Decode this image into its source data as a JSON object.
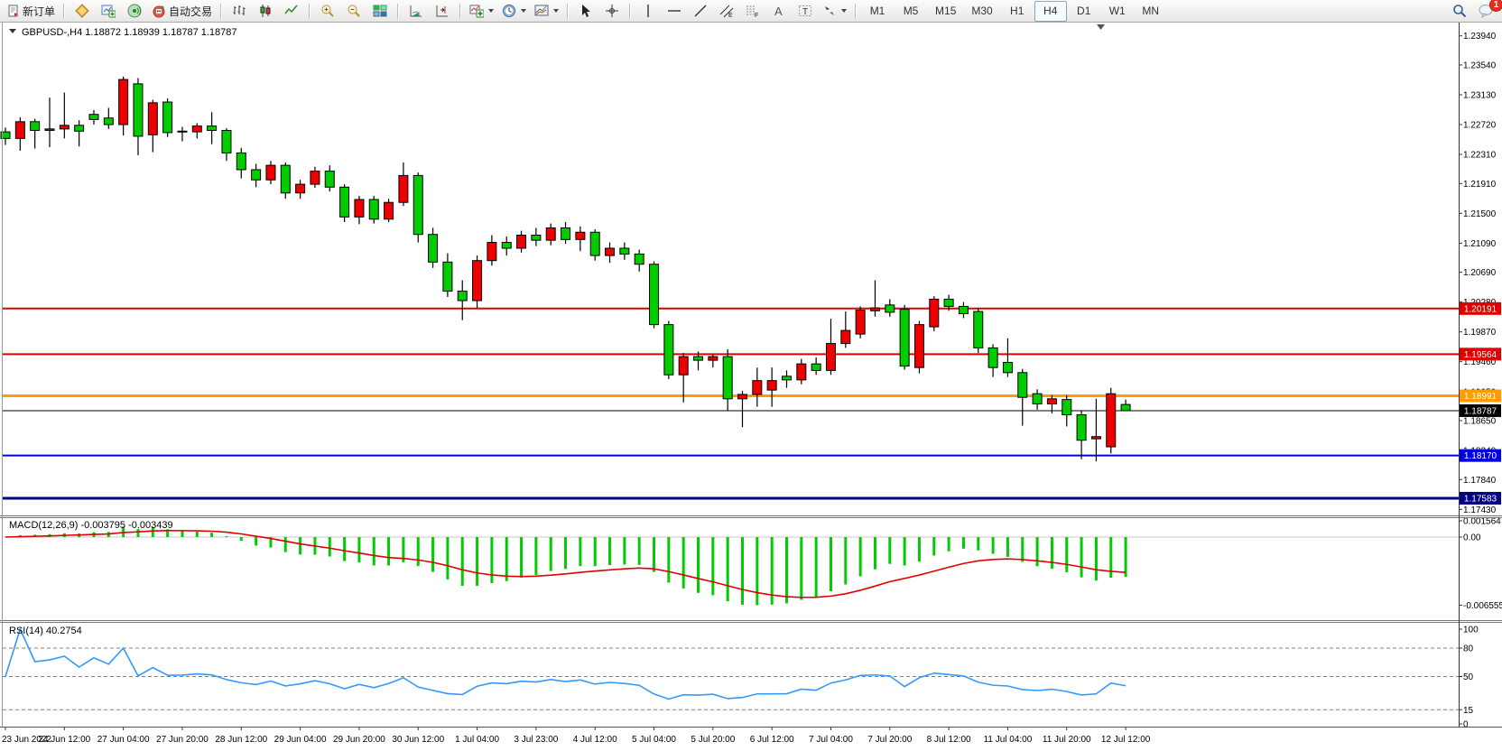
{
  "toolbar": {
    "new_order_label": "新订单",
    "autotrading_label": "自动交易",
    "timeframes": [
      "M1",
      "M5",
      "M15",
      "M30",
      "H1",
      "H4",
      "D1",
      "W1",
      "MN"
    ],
    "active_timeframe": "H4",
    "notification_count": "1"
  },
  "chart": {
    "symbol_title": "GBPUSD-,H4",
    "quote_line": "1.18872 1.18939 1.18787 1.18787",
    "price_axis_ticks": [
      "1.23940",
      "1.23540",
      "1.23130",
      "1.22720",
      "1.22310",
      "1.21910",
      "1.21500",
      "1.21090",
      "1.20690",
      "1.20280",
      "1.19870",
      "1.19460",
      "1.19050",
      "1.18650",
      "1.18240",
      "1.17840",
      "1.17430"
    ],
    "levels": [
      {
        "price": 1.20191,
        "text": "1.20191",
        "color": "#dd0000",
        "w": 2
      },
      {
        "price": 1.19564,
        "text": "1.19564",
        "color": "#dd0000",
        "w": 2
      },
      {
        "price": 1.18991,
        "text": "1.18991",
        "color": "#ff9c00",
        "w": 3
      },
      {
        "price": 1.18787,
        "text": "1.18787",
        "color": "#000000",
        "w": 1
      },
      {
        "price": 1.1817,
        "text": "1.18170",
        "color": "#0000dd",
        "w": 2
      },
      {
        "price": 1.17583,
        "text": "1.17583",
        "color": "#000080",
        "w": 3
      }
    ],
    "time_labels": [
      "23 Jun 2022",
      "24 Jun 12:00",
      "27 Jun 04:00",
      "27 Jun 20:00",
      "28 Jun 12:00",
      "29 Jun 04:00",
      "29 Jun 20:00",
      "30 Jun 12:00",
      "1 Jul 04:00",
      "3 Jul 23:00",
      "4 Jul 12:00",
      "5 Jul 04:00",
      "5 Jul 20:00",
      "6 Jul 12:00",
      "7 Jul 04:00",
      "7 Jul 20:00",
      "8 Jul 12:00",
      "11 Jul 04:00",
      "11 Jul 20:00",
      "12 Jul 12:00"
    ]
  },
  "macd": {
    "label": "MACD(12,26,9)",
    "values_text": "-0.003795 -0.003439",
    "params": [
      12,
      26,
      9
    ],
    "axis_ticks": [
      {
        "v": 0.001564,
        "text": "0.001564"
      },
      {
        "v": 0,
        "text": "0.00"
      },
      {
        "v": -0.006555,
        "text": "-0.006555"
      }
    ]
  },
  "rsi": {
    "label": "RSI(14)",
    "value_text": "40.2754",
    "period": 14,
    "axis_ticks": [
      {
        "v": 100,
        "text": "100"
      },
      {
        "v": 80,
        "text": "80"
      },
      {
        "v": 50,
        "text": "50"
      },
      {
        "v": 15,
        "text": "15"
      },
      {
        "v": 0,
        "text": "0"
      }
    ],
    "dashed_levels": [
      80,
      50,
      15
    ]
  },
  "chart_data": {
    "type": "candlestick",
    "symbol": "GBPUSD-",
    "timeframe": "H4",
    "note": "OHLC per 4h bar, 23 Jun - 12 Jul 2022; up candles red, down candles green",
    "up_color": "#ee0000",
    "down_color": "#00cc00",
    "candles": [
      [
        1.2262,
        1.2268,
        1.2244,
        1.2253
      ],
      [
        1.2253,
        1.2282,
        1.2236,
        1.2276
      ],
      [
        1.2276,
        1.228,
        1.2239,
        1.2264
      ],
      [
        1.2264,
        1.2309,
        1.2241,
        1.2266
      ],
      [
        1.2266,
        1.2316,
        1.2253,
        1.2271
      ],
      [
        1.2271,
        1.2278,
        1.2242,
        1.2263
      ],
      [
        1.2286,
        1.2292,
        1.2272,
        1.2279
      ],
      [
        1.2281,
        1.2295,
        1.2266,
        1.2272
      ],
      [
        1.2272,
        1.2338,
        1.2257,
        1.2334
      ],
      [
        1.2328,
        1.2336,
        1.223,
        1.2256
      ],
      [
        1.2258,
        1.2306,
        1.2234,
        1.2302
      ],
      [
        1.2303,
        1.2308,
        1.2255,
        1.2261
      ],
      [
        1.2263,
        1.2269,
        1.2249,
        1.2262
      ],
      [
        1.2262,
        1.2274,
        1.2253,
        1.227
      ],
      [
        1.227,
        1.2289,
        1.2245,
        1.2264
      ],
      [
        1.2264,
        1.2267,
        1.2222,
        1.2233
      ],
      [
        1.2233,
        1.224,
        1.2198,
        1.221
      ],
      [
        1.221,
        1.2218,
        1.2186,
        1.2196
      ],
      [
        1.2196,
        1.2222,
        1.219,
        1.2216
      ],
      [
        1.2216,
        1.222,
        1.217,
        1.2178
      ],
      [
        1.2178,
        1.2196,
        1.217,
        1.219
      ],
      [
        1.219,
        1.2214,
        1.2185,
        1.2208
      ],
      [
        1.2208,
        1.2216,
        1.218,
        1.2186
      ],
      [
        1.2186,
        1.219,
        1.2138,
        1.2145
      ],
      [
        1.2145,
        1.2174,
        1.2135,
        1.2169
      ],
      [
        1.2169,
        1.2174,
        1.2136,
        1.2142
      ],
      [
        1.2142,
        1.217,
        1.2138,
        1.2165
      ],
      [
        1.2165,
        1.222,
        1.216,
        1.2202
      ],
      [
        1.2202,
        1.2206,
        1.211,
        1.2121
      ],
      [
        1.2121,
        1.213,
        1.2075,
        1.2083
      ],
      [
        1.2083,
        1.2095,
        1.2035,
        1.2043
      ],
      [
        1.2043,
        1.2058,
        1.2003,
        1.203
      ],
      [
        1.203,
        1.2092,
        1.202,
        1.2085
      ],
      [
        1.2085,
        1.212,
        1.2078,
        1.211
      ],
      [
        1.211,
        1.2118,
        1.2092,
        1.2102
      ],
      [
        1.2102,
        1.2126,
        1.2096,
        1.212
      ],
      [
        1.212,
        1.213,
        1.2105,
        1.2113
      ],
      [
        1.2113,
        1.2136,
        1.2106,
        1.213
      ],
      [
        1.213,
        1.2138,
        1.2108,
        1.2114
      ],
      [
        1.2114,
        1.2132,
        1.2098,
        1.2124
      ],
      [
        1.2124,
        1.2128,
        1.2085,
        1.2092
      ],
      [
        1.2092,
        1.211,
        1.2082,
        1.2102
      ],
      [
        1.2102,
        1.211,
        1.2086,
        1.2094
      ],
      [
        1.2094,
        1.21,
        1.207,
        1.208
      ],
      [
        1.208,
        1.2084,
        1.1992,
        1.1997
      ],
      [
        1.1997,
        1.2002,
        1.1922,
        1.1928
      ],
      [
        1.1928,
        1.1958,
        1.189,
        1.1953
      ],
      [
        1.1953,
        1.196,
        1.1934,
        1.1948
      ],
      [
        1.1948,
        1.1956,
        1.1938,
        1.1953
      ],
      [
        1.1953,
        1.1963,
        1.1878,
        1.1895
      ],
      [
        1.1895,
        1.1906,
        1.1856,
        1.1901
      ],
      [
        1.1901,
        1.1938,
        1.1884,
        1.192
      ],
      [
        1.1907,
        1.1938,
        1.1884,
        1.192
      ],
      [
        1.1926,
        1.1934,
        1.191,
        1.1921
      ],
      [
        1.1921,
        1.195,
        1.1915,
        1.1943
      ],
      [
        1.1943,
        1.1952,
        1.1928,
        1.1934
      ],
      [
        1.1934,
        1.2005,
        1.1928,
        1.1971
      ],
      [
        1.1971,
        1.2015,
        1.1965,
        1.1989
      ],
      [
        1.1984,
        1.2022,
        1.1978,
        1.2017
      ],
      [
        1.2016,
        1.2058,
        1.2008,
        1.202
      ],
      [
        1.2024,
        1.2032,
        1.2008,
        1.2014
      ],
      [
        1.2018,
        1.2024,
        1.1935,
        1.194
      ],
      [
        1.1938,
        1.2002,
        1.193,
        1.1997
      ],
      [
        1.1994,
        1.2036,
        1.1988,
        1.2032
      ],
      [
        1.2032,
        1.2038,
        1.2016,
        1.2022
      ],
      [
        1.2022,
        1.2028,
        1.2006,
        1.2012
      ],
      [
        1.2015,
        1.202,
        1.1958,
        1.1965
      ],
      [
        1.1965,
        1.197,
        1.1925,
        1.1938
      ],
      [
        1.1945,
        1.1978,
        1.1925,
        1.1931
      ],
      [
        1.1931,
        1.1936,
        1.1858,
        1.1897
      ],
      [
        1.1902,
        1.1908,
        1.188,
        1.1888
      ],
      [
        1.1888,
        1.19,
        1.1875,
        1.1895
      ],
      [
        1.1894,
        1.19,
        1.1857,
        1.1873
      ],
      [
        1.1873,
        1.1878,
        1.1812,
        1.1838
      ],
      [
        1.184,
        1.1895,
        1.1809,
        1.1843
      ],
      [
        1.1829,
        1.191,
        1.182,
        1.1902
      ],
      [
        1.18872,
        1.18939,
        1.18787,
        1.18787
      ]
    ]
  }
}
